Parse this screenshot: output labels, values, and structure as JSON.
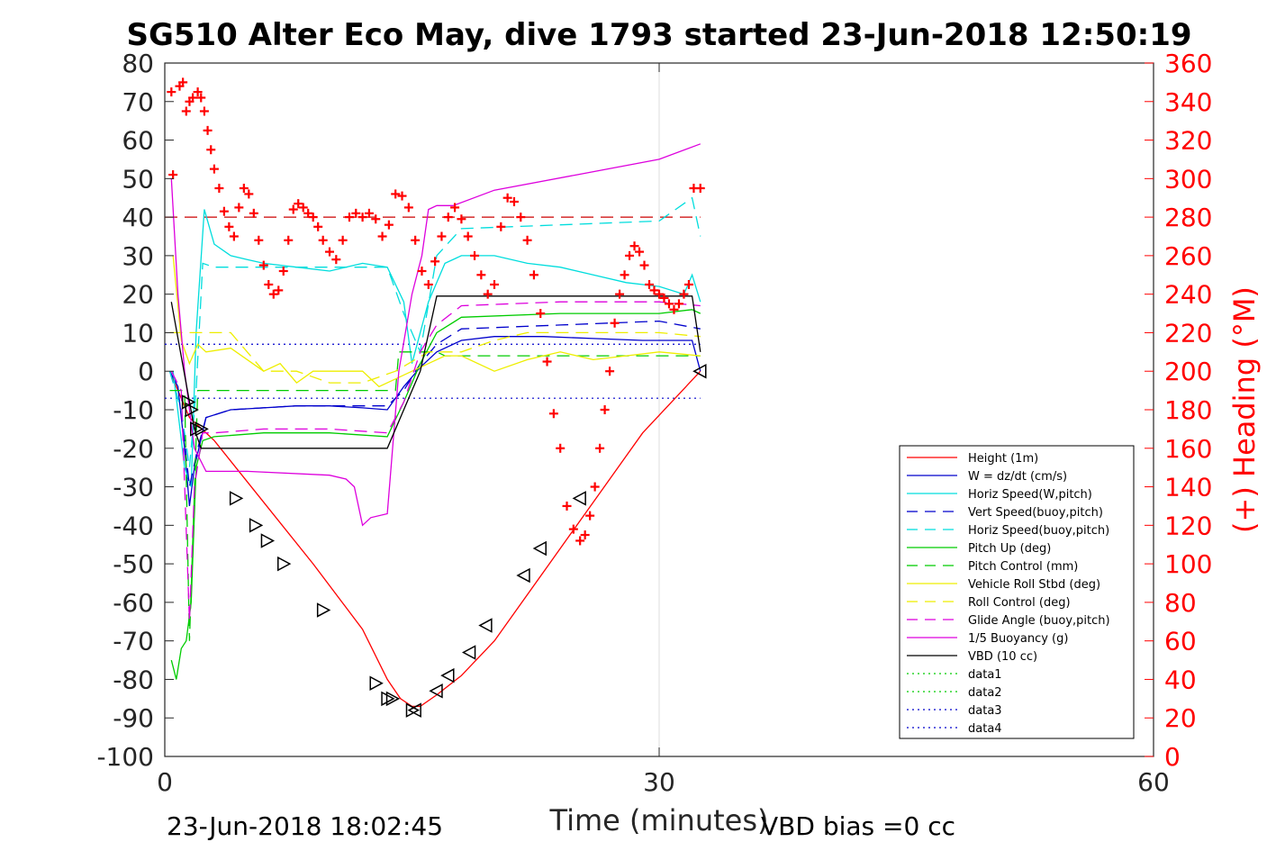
{
  "chart_data": {
    "type": "line",
    "title": "SG510 Alter Eco May, dive 1793 started 23-Jun-2018 12:50:19",
    "xlabel": "Time (minutes)",
    "ylabel_right": "(+) Heading (°M)",
    "xlim": [
      0,
      60
    ],
    "ylim": [
      -100,
      80
    ],
    "ylim_right": [
      0,
      360
    ],
    "x_ticks": [
      0,
      30,
      60
    ],
    "x_tick_labels": [
      "0",
      "30",
      "60"
    ],
    "y_ticks": [
      80,
      70,
      60,
      50,
      40,
      30,
      20,
      10,
      0,
      -10,
      -20,
      -30,
      -40,
      -50,
      -60,
      -70,
      -80,
      -90,
      -100
    ],
    "y_tick_labels": [
      "80",
      "70",
      "60",
      "50",
      "40",
      "30",
      "20",
      "10",
      "0",
      "-10",
      "-20",
      "-30",
      "-40",
      "-50",
      "-60",
      "-70",
      "-80",
      "-90",
      "-100"
    ],
    "y_right_ticks": [
      360,
      340,
      320,
      300,
      280,
      260,
      240,
      220,
      200,
      180,
      160,
      140,
      120,
      100,
      80,
      60,
      40,
      20,
      0
    ],
    "y_right_tick_labels": [
      "360",
      "340",
      "320",
      "300",
      "280",
      "260",
      "240",
      "220",
      "200",
      "180",
      "160",
      "140",
      "120",
      "100",
      "80",
      "60",
      "40",
      "20",
      "0"
    ],
    "grid": "x at 30",
    "legend_position": "bottom-right",
    "footer_left": "23-Jun-2018 18:02:45",
    "footer_right": "VBD bias =0 cc",
    "series": [
      {
        "name": "Height (1m)",
        "color": "#ff0000",
        "dash": "solid",
        "x": [
          0.3,
          1.5,
          3,
          6,
          9,
          12,
          13.5,
          14.3,
          15,
          15.5,
          16.5,
          18,
          20,
          23,
          26,
          29,
          32.5
        ],
        "y": [
          0,
          -12,
          -18,
          -34,
          -50,
          -67,
          -80,
          -85,
          -87,
          -87,
          -84,
          -79,
          -70,
          -52,
          -34,
          -16,
          0
        ]
      },
      {
        "name": "W = dz/dt (cm/s)",
        "color": "#0000cc",
        "dash": "solid",
        "x": [
          0.3,
          0.8,
          1.2,
          1.5,
          1.8,
          2.5,
          4,
          6,
          8,
          10,
          12,
          13.5,
          14.5,
          15.5,
          16.5,
          18,
          20,
          23,
          26,
          29,
          32,
          32.5
        ],
        "y": [
          0,
          -4,
          -20,
          -35,
          -25,
          -12,
          -10,
          -9.5,
          -9,
          -9,
          -9.5,
          -10,
          -4,
          1,
          5,
          8,
          9,
          9,
          8.5,
          8,
          8,
          0
        ]
      },
      {
        "name": "Horiz Speed(W,pitch)",
        "color": "#00dddd",
        "dash": "solid",
        "x": [
          0.5,
          1.2,
          1.6,
          1.9,
          2.4,
          3,
          4,
          5,
          6,
          8,
          10,
          12,
          13.5,
          14.5,
          15,
          16,
          17,
          18,
          20,
          22,
          24,
          26,
          28,
          30,
          31.5,
          32,
          32.5
        ],
        "y": [
          0,
          -25,
          -30,
          10,
          42,
          33,
          30,
          29,
          28,
          27,
          26,
          28,
          27,
          18,
          2,
          18,
          28,
          30,
          30,
          28,
          27,
          25,
          23,
          22,
          20,
          25,
          18
        ]
      },
      {
        "name": "Vert Speed(buoy,pitch)",
        "color": "#0000cc",
        "dash": "long-dash",
        "x": [
          0.3,
          1.0,
          1.5,
          2.0,
          2.5,
          4,
          8,
          12,
          13.5,
          14.5,
          15.5,
          16.5,
          18,
          24,
          30,
          32.5
        ],
        "y": [
          0,
          -10,
          -30,
          -20,
          -12,
          -10,
          -9,
          -9,
          -9,
          -5,
          2,
          7,
          11,
          12,
          13,
          11
        ]
      },
      {
        "name": "Horiz Speed(buoy,pitch)",
        "color": "#00dddd",
        "dash": "long-dash",
        "x": [
          0.3,
          1.0,
          1.5,
          1.9,
          2.3,
          3,
          6,
          10,
          13.5,
          14.5,
          15.5,
          16.5,
          18,
          24,
          30,
          32,
          32.5
        ],
        "y": [
          0,
          -10,
          -25,
          -5,
          28,
          27,
          27,
          27,
          27,
          15,
          5,
          30,
          37,
          38,
          39,
          45,
          35
        ]
      },
      {
        "name": "Pitch Up (deg)",
        "color": "#00cc00",
        "dash": "solid",
        "x": [
          0.4,
          0.7,
          1.0,
          1.3,
          1.6,
          1.9,
          2.3,
          3,
          6,
          10,
          13.5,
          14.5,
          15.5,
          16.5,
          18,
          24,
          30,
          32,
          32.5
        ],
        "y": [
          -75,
          -80,
          -72,
          -70,
          -60,
          -25,
          -18,
          -17,
          -16,
          -16,
          -17,
          -8,
          2,
          10,
          14,
          15,
          15,
          16,
          15
        ]
      },
      {
        "name": "Pitch Control (mm)",
        "color": "#00cc00",
        "dash": "long-dash",
        "x": [
          0.3,
          1.2,
          1.5,
          2.0,
          3,
          8,
          13.5,
          14.0,
          14.2,
          16.5,
          17.0,
          30,
          32.5
        ],
        "y": [
          -5,
          -5,
          -70,
          -5,
          -5,
          -5,
          -5,
          -5,
          5,
          5,
          4,
          4,
          4
        ]
      },
      {
        "name": "Vehicle Roll Stbd (deg)",
        "color": "#eeee00",
        "dash": "solid",
        "x": [
          0.5,
          1.0,
          1.5,
          2.0,
          2.5,
          4,
          6,
          7,
          8,
          9,
          12,
          13,
          14,
          15,
          16,
          17,
          18,
          20,
          22,
          24,
          26,
          28,
          30,
          32.5
        ],
        "y": [
          30,
          8,
          2,
          7,
          5,
          6,
          0,
          2,
          -3,
          0,
          0,
          -4,
          -2,
          0,
          2,
          4,
          4,
          0,
          3,
          5,
          3,
          4,
          5,
          4
        ]
      },
      {
        "name": "Roll Control (deg)",
        "color": "#eeee00",
        "dash": "long-dash",
        "x": [
          0.3,
          2,
          4,
          6,
          8,
          10,
          12,
          14,
          16,
          18,
          20,
          22,
          24,
          26,
          28,
          30,
          32.5
        ],
        "y": [
          10,
          10,
          10,
          0,
          0,
          -3,
          -3,
          0,
          5,
          5,
          8,
          10,
          10,
          10,
          10,
          10,
          9
        ]
      },
      {
        "name": "Glide Angle (buoy,pitch)",
        "color": "#dd00dd",
        "dash": "long-dash",
        "x": [
          0.4,
          1.0,
          1.5,
          1.8,
          2.3,
          3,
          6,
          10,
          13.5,
          14.5,
          15.5,
          16.5,
          18,
          24,
          30,
          32.5
        ],
        "y": [
          0,
          -5,
          -65,
          -30,
          -16,
          -16,
          -15,
          -15,
          -16,
          -8,
          5,
          12,
          17,
          18,
          18,
          17
        ]
      },
      {
        "name": "1/5 Buoyancy (g)",
        "color": "#dd00dd",
        "dash": "solid",
        "x": [
          0.4,
          0.8,
          1.2,
          1.8,
          2.5,
          5,
          10,
          11,
          11.5,
          12,
          12.5,
          13.5,
          14.2,
          15,
          15.6,
          16,
          16.5,
          17.5,
          20,
          25,
          30,
          32.5
        ],
        "y": [
          50,
          20,
          0,
          -20,
          -26,
          -26,
          -27,
          -28,
          -30,
          -40,
          -38,
          -37,
          0,
          20,
          30,
          42,
          43,
          43,
          47,
          51,
          55,
          59
        ]
      },
      {
        "name": "VBD (10 cc)",
        "color": "#000000",
        "dash": "solid",
        "x": [
          0.4,
          1.8,
          2.2,
          13.5,
          15.5,
          16.5,
          32.0,
          32.5
        ],
        "y": [
          18,
          -15,
          -20,
          -20,
          0,
          19.5,
          19.5,
          5
        ]
      },
      {
        "name": "data1",
        "color": "#00cc00",
        "dash": "dotted",
        "x": [],
        "y": []
      },
      {
        "name": "data2",
        "color": "#00cc00",
        "dash": "dotted",
        "x": [],
        "y": []
      },
      {
        "name": "data3",
        "color": "#0000cc",
        "dash": "dotted",
        "x": [],
        "y": []
      },
      {
        "name": "data4",
        "color": "#0000cc",
        "dash": "dotted",
        "x": [],
        "y": []
      }
    ],
    "reference_lines": [
      {
        "y": 40,
        "color": "#cc0000",
        "dash": "long-dash",
        "x": [
          0,
          32.5
        ]
      },
      {
        "y": 7,
        "color": "#0000cc",
        "dash": "dotted",
        "x": [
          0,
          32.5
        ]
      },
      {
        "y": -7,
        "color": "#0000cc",
        "dash": "dotted",
        "x": [
          0,
          32.5
        ]
      }
    ],
    "heading_markers": {
      "color": "#ff0000",
      "marker": "+",
      "x": [
        0.4,
        0.5,
        0.9,
        1.1,
        1.3,
        1.5,
        1.7,
        2.0,
        2.2,
        2.4,
        2.6,
        2.8,
        3.0,
        3.3,
        3.6,
        3.9,
        4.2,
        4.5,
        4.8,
        5.1,
        5.4,
        5.7,
        6.0,
        6.3,
        6.6,
        6.9,
        7.2,
        7.5,
        7.8,
        8.1,
        8.4,
        8.7,
        9.0,
        9.3,
        9.6,
        10.0,
        10.4,
        10.8,
        11.2,
        11.6,
        12.0,
        12.4,
        12.8,
        13.2,
        13.6,
        14.0,
        14.4,
        14.8,
        15.2,
        15.6,
        16.0,
        16.4,
        16.8,
        17.2,
        17.6,
        18.0,
        18.4,
        18.8,
        19.2,
        19.6,
        20.0,
        20.4,
        20.8,
        21.2,
        21.6,
        22.0,
        22.4,
        22.8,
        23.2,
        23.6,
        24.0,
        24.4,
        24.8,
        25.2,
        25.5,
        25.8,
        26.1,
        26.4,
        26.7,
        27.0,
        27.3,
        27.6,
        27.9,
        28.2,
        28.5,
        28.8,
        29.1,
        29.4,
        29.7,
        30.0,
        30.3,
        30.6,
        30.9,
        31.2,
        31.5,
        31.8,
        32.1,
        32.5
      ],
      "y": [
        345,
        302,
        348,
        350,
        335,
        340,
        342,
        345,
        342,
        335,
        325,
        315,
        305,
        295,
        283,
        275,
        270,
        285,
        295,
        292,
        282,
        268,
        255,
        245,
        240,
        242,
        252,
        268,
        284,
        287,
        285,
        282,
        280,
        275,
        268,
        262,
        258,
        268,
        280,
        282,
        280,
        282,
        279,
        270,
        276,
        292,
        291,
        285,
        268,
        252,
        245,
        257,
        270,
        280,
        285,
        279,
        270,
        260,
        250,
        240,
        245,
        275,
        290,
        288,
        280,
        268,
        250,
        230,
        205,
        178,
        160,
        130,
        118,
        112,
        115,
        125,
        140,
        160,
        180,
        200,
        225,
        240,
        250,
        260,
        265,
        262,
        255,
        245,
        242,
        240,
        238,
        235,
        232,
        235,
        240,
        245,
        295,
        295
      ]
    },
    "triangle_markers": {
      "color": "#000000",
      "x": [
        1.4,
        1.6,
        1.9,
        2.2,
        4.3,
        5.5,
        6.2,
        7.2,
        9.6,
        12.8,
        13.5,
        13.8,
        15.0,
        15.2,
        16.5,
        17.2,
        18.5,
        19.5,
        21.8,
        22.8,
        25.2,
        32.5
      ],
      "y": [
        -8,
        -10,
        -15,
        -15,
        -33,
        -40,
        -44,
        -50,
        -62,
        -81,
        -85,
        -85,
        -88,
        -88,
        -83,
        -79,
        -73,
        -66,
        -53,
        -46,
        -33,
        0
      ]
    }
  }
}
